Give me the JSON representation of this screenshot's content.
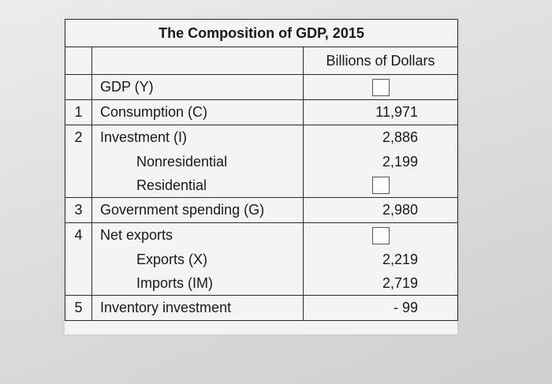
{
  "table": {
    "title": "The Composition of GDP, 2015",
    "column_header": "Billions of Dollars",
    "rows": [
      {
        "num": "",
        "label": "GDP (Y)",
        "value": "",
        "input": true
      },
      {
        "num": "1",
        "label": "Consumption (C)",
        "value": "11,971"
      },
      {
        "num": "2",
        "label": "Investment (I)",
        "value": "2,886"
      },
      {
        "num": "",
        "label": "Nonresidential",
        "value": "2,199"
      },
      {
        "num": "",
        "label": "Residential",
        "value": "",
        "input": true
      },
      {
        "num": "3",
        "label": "Government spending (G)",
        "value": "2,980"
      },
      {
        "num": "4",
        "label": "Net exports",
        "value": "",
        "input": true
      },
      {
        "num": "",
        "label": "Exports (X)",
        "value": "2,219"
      },
      {
        "num": "",
        "label": "Imports (IM)",
        "value": "2,719"
      },
      {
        "num": "5",
        "label": "Inventory investment",
        "value": "- 99"
      }
    ]
  }
}
